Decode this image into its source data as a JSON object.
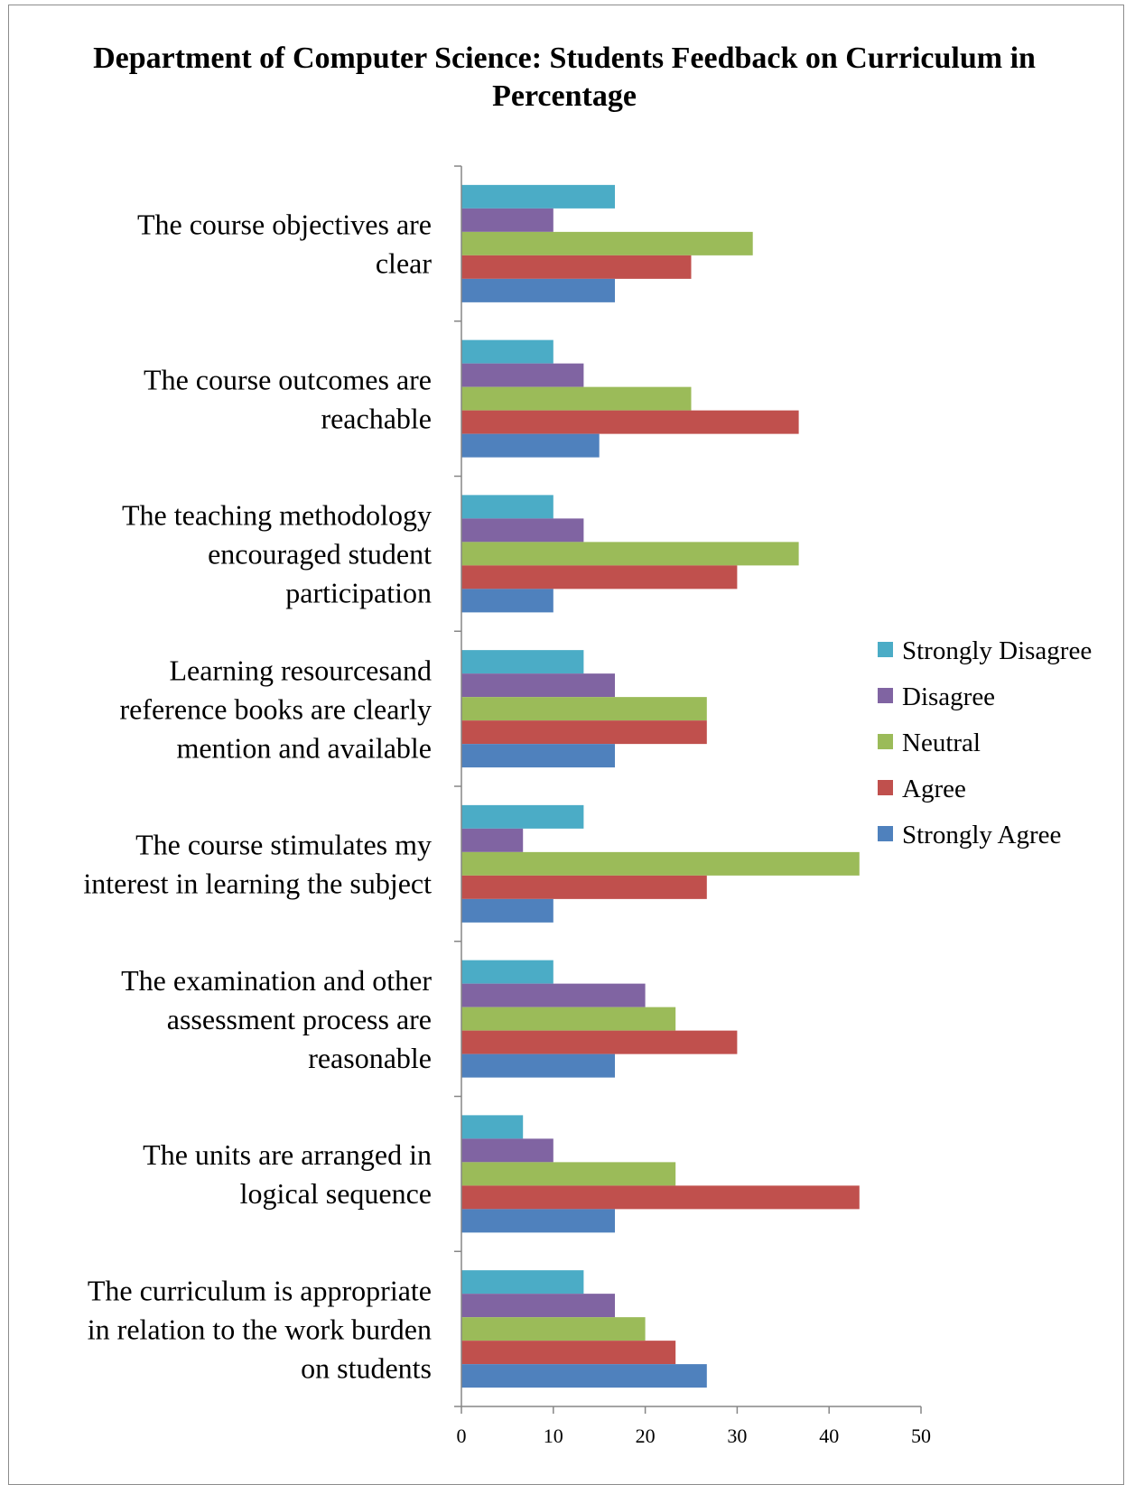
{
  "chart_data": {
    "type": "bar",
    "orientation": "horizontal",
    "title": "Department of Computer Science: Students Feedback on Curriculum in Percentage",
    "categories": [
      "The course objectives are clear",
      "The course outcomes are reachable",
      "The teaching methodology encouraged student participation",
      "Learning resourcesand reference books are clearly mention and available",
      "The course stimulates my interest in learning the subject",
      "The examination and other assessment process are reasonable",
      "The units are arranged in logical sequence",
      "The curriculum is appropriate in relation to the work burden on students"
    ],
    "category_label_lines": [
      [
        "The course objectives are",
        "clear"
      ],
      [
        "The course outcomes are",
        "reachable"
      ],
      [
        "The teaching methodology",
        "encouraged student",
        "participation"
      ],
      [
        "Learning resourcesand",
        "reference books are clearly",
        "mention and available"
      ],
      [
        "The course stimulates my",
        "interest in learning the subject"
      ],
      [
        "The examination and other",
        "assessment process are",
        "reasonable"
      ],
      [
        "The units are arranged in",
        "logical sequence"
      ],
      [
        "The curriculum is appropriate",
        "in relation to the work burden",
        "on students"
      ]
    ],
    "series": [
      {
        "name": "Strongly Disagree",
        "color": "#4BACC6",
        "values": [
          16.7,
          10,
          10,
          13.3,
          13.3,
          10,
          6.7,
          13.3
        ]
      },
      {
        "name": "Disagree",
        "color": "#8064A2",
        "values": [
          10,
          13.3,
          13.3,
          16.7,
          6.7,
          20,
          10,
          16.7
        ]
      },
      {
        "name": "Neutral",
        "color": "#9BBB59",
        "values": [
          31.7,
          25,
          36.7,
          26.7,
          43.3,
          23.3,
          23.3,
          20
        ]
      },
      {
        "name": "Agree",
        "color": "#C0504D",
        "values": [
          25,
          36.7,
          30,
          26.7,
          26.7,
          30,
          43.3,
          23.3
        ]
      },
      {
        "name": "Strongly Agree",
        "color": "#4F81BD",
        "values": [
          16.7,
          15,
          10,
          16.7,
          10,
          16.7,
          16.7,
          26.7
        ]
      }
    ],
    "xlim": [
      0,
      50
    ],
    "xticks": [
      0,
      10,
      20,
      30,
      40,
      50
    ],
    "xlabel": "",
    "ylabel": "",
    "grid": false,
    "legend_position": "right",
    "legend_order": [
      "Strongly Disagree",
      "Disagree",
      "Neutral",
      "Agree",
      "Strongly Agree"
    ]
  }
}
